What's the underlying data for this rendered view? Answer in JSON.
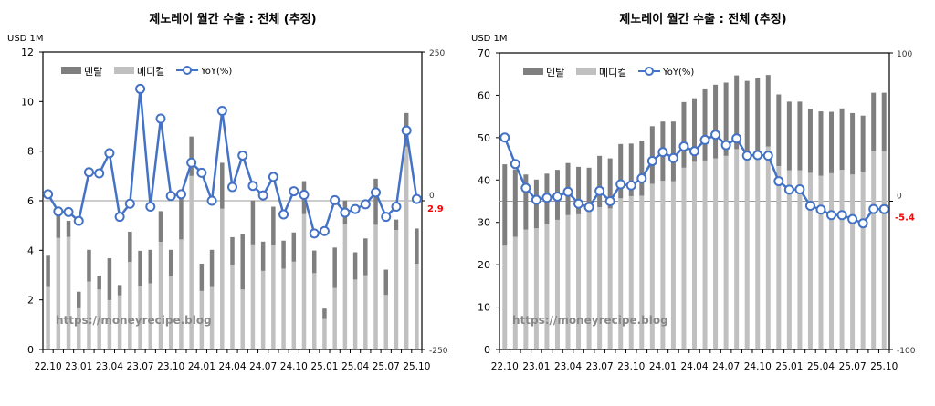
{
  "chart_data": [
    {
      "type": "bar",
      "stacked": true,
      "title": "제노레이 월간 수출 : 전체 (추정)",
      "ylabel": "USD 1M",
      "ylim": [
        0,
        12
      ],
      "yticks": [
        "0",
        "2",
        "4",
        "6",
        "8",
        "10",
        "12"
      ],
      "y2lim": [
        -250,
        250
      ],
      "y2ticks": [
        "-250",
        "0",
        "250"
      ],
      "xtick_labels": [
        "22.10",
        "23.01",
        "23.04",
        "23.07",
        "23.10",
        "24.01",
        "24.04",
        "24.07",
        "24.10",
        "25.01",
        "25.04",
        "25.07",
        "25.10"
      ],
      "categories": [
        "22.10",
        "22.11",
        "22.12",
        "23.01",
        "23.02",
        "23.03",
        "23.04",
        "23.05",
        "23.06",
        "23.07",
        "23.08",
        "23.09",
        "23.10",
        "23.11",
        "23.12",
        "24.01",
        "24.02",
        "24.03",
        "24.04",
        "24.05",
        "24.06",
        "24.07",
        "24.08",
        "24.09",
        "24.10",
        "24.11",
        "24.12",
        "25.01",
        "25.02",
        "25.03",
        "25.04",
        "25.05",
        "25.06",
        "25.07",
        "25.08",
        "25.09",
        "25.10"
      ],
      "series": [
        {
          "name": "덴탈",
          "color": "#7f7f7f",
          "axis": "left",
          "values": [
            1.26,
            0.9,
            0.65,
            0.67,
            1.28,
            0.56,
            1.69,
            0.42,
            1.22,
            1.43,
            1.35,
            1.24,
            1.04,
            1.66,
            1.59,
            1.1,
            1.5,
            1.85,
            1.12,
            2.25,
            1.77,
            1.18,
            1.55,
            1.13,
            1.18,
            1.33,
            0.91,
            0.42,
            1.63,
            0.93,
            1.1,
            1.49,
            1.86,
            1.02,
            0.42,
            1.36,
            1.42
          ]
        },
        {
          "name": "메디컬",
          "color": "#c0c0c0",
          "axis": "left",
          "values": [
            2.52,
            4.5,
            4.54,
            1.66,
            2.74,
            2.42,
            1.99,
            2.18,
            3.53,
            2.55,
            2.67,
            4.34,
            2.98,
            4.44,
            7.0,
            2.36,
            2.52,
            5.68,
            3.41,
            2.42,
            4.24,
            3.17,
            4.21,
            3.26,
            3.54,
            5.46,
            3.08,
            1.23,
            2.48,
            5.08,
            2.82,
            2.99,
            5.03,
            2.2,
            4.82,
            8.18,
            3.46
          ]
        },
        {
          "name": "YoY(%)",
          "color": "#4472c4",
          "axis": "right",
          "type": "line",
          "values": [
            11,
            -18,
            -19,
            -34,
            48,
            46,
            80,
            -27,
            -5,
            188,
            -10,
            138,
            8,
            11,
            64,
            47,
            0,
            151,
            23,
            76,
            25,
            9,
            40,
            -23,
            16,
            10,
            -55,
            -51,
            1,
            -20,
            -14,
            -6,
            14,
            -27,
            -10,
            118,
            2.9
          ]
        }
      ],
      "last_label": "2.9",
      "legend_position": "top-left",
      "watermark": "https://moneyrecipe.blog"
    },
    {
      "type": "bar",
      "stacked": true,
      "title": "제노레이 월간 수출 : 전체 (추정)",
      "ylabel": "USD 1M",
      "ylim": [
        0,
        70
      ],
      "yticks": [
        "0",
        "10",
        "20",
        "30",
        "40",
        "50",
        "60",
        "70"
      ],
      "y2lim": [
        -100,
        100
      ],
      "y2ticks": [
        "-100",
        "0",
        "100"
      ],
      "xtick_labels": [
        "22.10",
        "23.01",
        "23.04",
        "23.07",
        "23.10",
        "24.01",
        "24.04",
        "24.07",
        "24.10",
        "25.01",
        "25.04",
        "25.07",
        "25.10"
      ],
      "categories": [
        "22.10",
        "22.11",
        "22.12",
        "23.01",
        "23.02",
        "23.03",
        "23.04",
        "23.05",
        "23.06",
        "23.07",
        "23.08",
        "23.09",
        "23.10",
        "23.11",
        "23.12",
        "24.01",
        "24.02",
        "24.03",
        "24.04",
        "24.05",
        "24.06",
        "24.07",
        "24.08",
        "24.09",
        "24.10",
        "24.11",
        "24.12",
        "25.01",
        "25.02",
        "25.03",
        "25.04",
        "25.05",
        "25.06",
        "25.07",
        "25.08",
        "25.09",
        "25.10"
      ],
      "series": [
        {
          "name": "덴탈",
          "color": "#7f7f7f",
          "axis": "left",
          "values": [
            19.2,
            15.9,
            13.0,
            11.5,
            12.0,
            11.8,
            12.3,
            11.2,
            10.2,
            12.1,
            11.8,
            12.8,
            12.4,
            13.0,
            13.6,
            14.0,
            14.1,
            15.5,
            15.0,
            16.8,
            17.4,
            17.3,
            17.4,
            18.1,
            19.0,
            16.9,
            16.9,
            16.2,
            16.2,
            15.1,
            15.2,
            14.5,
            14.5,
            14.5,
            13.2,
            13.8,
            13.8
          ]
        },
        {
          "name": "메디컬",
          "color": "#c0c0c0",
          "axis": "left",
          "values": [
            24.5,
            26.6,
            28.3,
            28.6,
            29.5,
            30.6,
            31.7,
            31.9,
            32.7,
            33.6,
            33.3,
            35.7,
            36.2,
            36.3,
            39.1,
            39.8,
            39.7,
            42.9,
            44.3,
            44.6,
            45.1,
            45.7,
            47.3,
            45.3,
            45.0,
            47.9,
            43.3,
            42.3,
            42.3,
            41.7,
            41.0,
            41.6,
            42.4,
            41.3,
            42.0,
            46.8,
            46.8
          ]
        },
        {
          "name": "YoY(%)",
          "color": "#4472c4",
          "axis": "right",
          "type": "line",
          "values": [
            42.9,
            25.1,
            8.9,
            0.9,
            2.3,
            3.1,
            6.3,
            -1.7,
            -4,
            6.9,
            0,
            11.4,
            10.6,
            15.4,
            27.1,
            33.1,
            29.1,
            36.9,
            33.7,
            41.3,
            44.8,
            37.8,
            42.3,
            30.7,
            31.1,
            30.7,
            13.5,
            7.8,
            8,
            -3.1,
            -5.7,
            -9.4,
            -9.4,
            -12.1,
            -14.9,
            -5.3,
            -5.4
          ]
        }
      ],
      "last_label": "-5.4",
      "legend_position": "top-left",
      "watermark": "https://moneyrecipe.blog"
    }
  ]
}
